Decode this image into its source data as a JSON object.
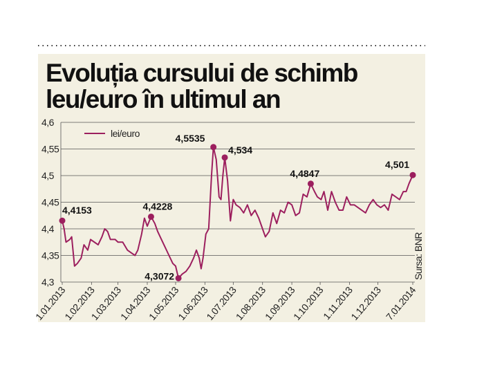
{
  "chart_data": {
    "type": "line",
    "title": [
      "Evoluția cursului de schimb",
      "leu/euro în ultimul an"
    ],
    "source": "Sursa: BNR",
    "legend_corner": "upper left",
    "grid": true,
    "ylim": [
      4.3,
      4.6
    ],
    "yticks": [
      {
        "value": 4.3,
        "label": "4,3"
      },
      {
        "value": 4.35,
        "label": "4,35"
      },
      {
        "value": 4.4,
        "label": "4,4"
      },
      {
        "value": 4.45,
        "label": "4,45"
      },
      {
        "value": 4.5,
        "label": "4,5"
      },
      {
        "value": 4.55,
        "label": "4,55"
      },
      {
        "value": 4.6,
        "label": "4,6"
      }
    ],
    "xlim": [
      "1.01.2013",
      "7.01.2014"
    ],
    "xticks": [
      "1.01.2013",
      "1.02.2013",
      "1.03.2013",
      "1.04.2013",
      "1.05.2013",
      "1.06.2013",
      "1.07.2013",
      "1.08.2013",
      "1.09.2013",
      "1.10.2013",
      "1.11.2013",
      "1.12.2013",
      "7.01.2014"
    ],
    "x": [
      "1.01.2013",
      "3.01.2013",
      "5.01.2013",
      "9.01.2013",
      "11.01.2013",
      "14.01.2013",
      "17.01.2013",
      "21.01.2013",
      "24.01.2013",
      "28.01.2013",
      "31.01.2013",
      "4.02.2013",
      "8.02.2013",
      "12.02.2013",
      "15.02.2013",
      "18.02.2013",
      "21.02.2013",
      "26.02.2013",
      "1.03.2013",
      "6.03.2013",
      "11.03.2013",
      "15.03.2013",
      "19.03.2013",
      "22.03.2013",
      "26.03.2013",
      "29.03.2013",
      "1.04.2013",
      "5.04.2013",
      "9.04.2013",
      "12.04.2013",
      "16.04.2013",
      "20.04.2013",
      "24.04.2013",
      "28.04.2013",
      "1.05.2013",
      "4.05.2013",
      "8.05.2013",
      "12.05.2013",
      "16.05.2013",
      "20.05.2013",
      "23.05.2013",
      "26.05.2013",
      "28.05.2013",
      "30.05.2013",
      "2.06.2013",
      "5.06.2013",
      "8.06.2013",
      "10.06.2013",
      "13.06.2013",
      "16.06.2013",
      "18.06.2013",
      "20.06.2013",
      "22.06.2013",
      "25.06.2013",
      "28.06.2013",
      "1.07.2013",
      "4.07.2013",
      "8.07.2013",
      "12.07.2013",
      "16.07.2013",
      "20.07.2013",
      "24.07.2013",
      "28.07.2013",
      "1.08.2013",
      "4.08.2013",
      "8.08.2013",
      "12.08.2013",
      "16.08.2013",
      "20.08.2013",
      "24.08.2013",
      "28.08.2013",
      "1.09.2013",
      "5.09.2013",
      "9.09.2013",
      "13.09.2013",
      "17.09.2013",
      "21.09.2013",
      "25.09.2013",
      "28.09.2013",
      "2.10.2013",
      "5.10.2013",
      "9.10.2013",
      "13.10.2013",
      "17.10.2013",
      "21.10.2013",
      "25.10.2013",
      "29.10.2013",
      "2.11.2013",
      "6.11.2013",
      "10.11.2013",
      "14.11.2013",
      "18.11.2013",
      "22.11.2013",
      "26.11.2013",
      "30.11.2013",
      "4.12.2013",
      "8.12.2013",
      "12.12.2013",
      "16.12.2013",
      "20.12.2013",
      "24.12.2013",
      "28.12.2013",
      "31.12.2013",
      "3.01.2014",
      "7.01.2014"
    ],
    "series": [
      {
        "name": "lei/euro",
        "color": "#9c1f5e",
        "values": [
          4.4153,
          4.4,
          4.375,
          4.38,
          4.385,
          4.33,
          4.335,
          4.345,
          4.37,
          4.36,
          4.38,
          4.375,
          4.37,
          4.385,
          4.4,
          4.395,
          4.38,
          4.38,
          4.375,
          4.375,
          4.36,
          4.355,
          4.35,
          4.36,
          4.39,
          4.42,
          4.405,
          4.4228,
          4.41,
          4.395,
          4.38,
          4.365,
          4.35,
          4.335,
          4.33,
          4.3072,
          4.315,
          4.32,
          4.33,
          4.345,
          4.36,
          4.345,
          4.325,
          4.345,
          4.39,
          4.4,
          4.5,
          4.5535,
          4.53,
          4.46,
          4.455,
          4.5,
          4.534,
          4.49,
          4.415,
          4.455,
          4.445,
          4.44,
          4.43,
          4.445,
          4.425,
          4.435,
          4.42,
          4.4,
          4.385,
          4.395,
          4.43,
          4.41,
          4.435,
          4.43,
          4.45,
          4.445,
          4.425,
          4.43,
          4.465,
          4.46,
          4.4847,
          4.47,
          4.46,
          4.455,
          4.47,
          4.435,
          4.47,
          4.45,
          4.435,
          4.435,
          4.46,
          4.445,
          4.445,
          4.44,
          4.435,
          4.43,
          4.445,
          4.455,
          4.445,
          4.44,
          4.445,
          4.435,
          4.465,
          4.46,
          4.455,
          4.47,
          4.47,
          4.485,
          4.501
        ]
      }
    ],
    "annotations": [
      {
        "x": "1.01.2013",
        "value": 4.4153,
        "label": "4,4153"
      },
      {
        "x": "5.04.2013",
        "value": 4.4228,
        "label": "4,4228"
      },
      {
        "x": "4.05.2013",
        "value": 4.3072,
        "label": "4,3072"
      },
      {
        "x": "10.06.2013",
        "value": 4.5535,
        "label": "4,5535"
      },
      {
        "x": "22.06.2013",
        "value": 4.534,
        "label": "4,534"
      },
      {
        "x": "21.09.2013",
        "value": 4.4847,
        "label": "4,4847"
      },
      {
        "x": "7.01.2014",
        "value": 4.501,
        "label": "4,501"
      }
    ]
  }
}
